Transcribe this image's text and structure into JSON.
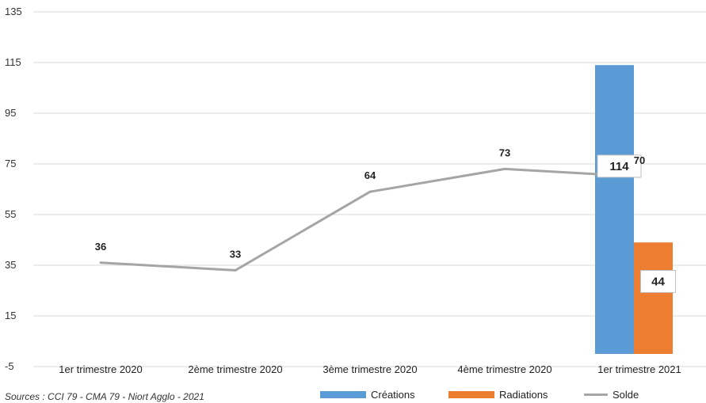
{
  "chart_data": {
    "type": "bar",
    "categories": [
      "1er trimestre 2020",
      "2ème trimestre 2020",
      "3ème trimestre 2020",
      "4ème trimestre 2020",
      "1er trimestre 2021"
    ],
    "series": [
      {
        "name": "Créations",
        "type": "bar",
        "color": "#5B9BD5",
        "values": [
          null,
          null,
          null,
          null,
          114
        ]
      },
      {
        "name": "Radiations",
        "type": "bar",
        "color": "#ED7D31",
        "values": [
          null,
          null,
          null,
          null,
          44
        ]
      },
      {
        "name": "Solde",
        "type": "line",
        "color": "#A5A5A5",
        "values": [
          36,
          33,
          64,
          73,
          70
        ]
      }
    ],
    "ylim": [
      -5,
      135
    ],
    "yticks": [
      -5,
      15,
      35,
      55,
      75,
      95,
      115,
      135
    ],
    "grid": true,
    "legend_position": "bottom",
    "title": "",
    "xlabel": "",
    "ylabel": ""
  },
  "source": "Sources : CCI 79 - CMA 79 - Niort Agglo - 2021"
}
